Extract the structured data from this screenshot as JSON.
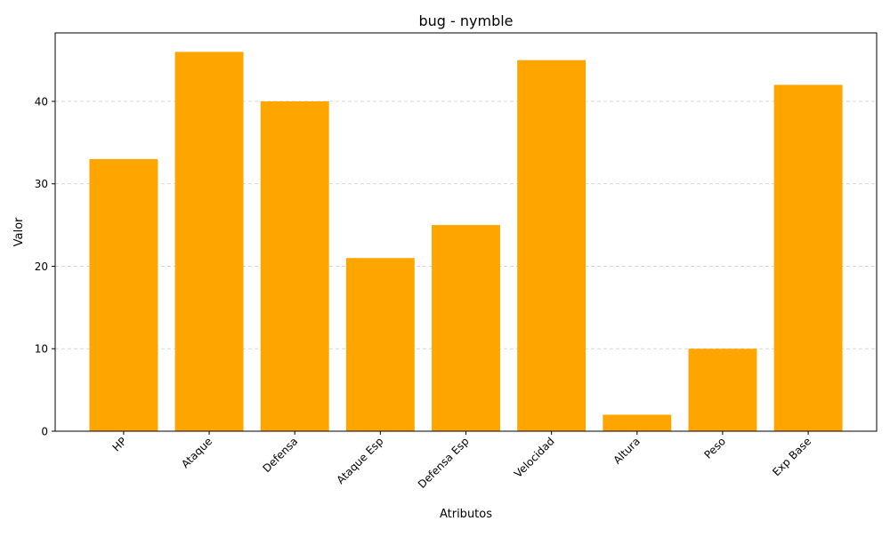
{
  "chart_data": {
    "type": "bar",
    "title": "bug - nymble",
    "xlabel": "Atributos",
    "ylabel": "Valor",
    "categories": [
      "HP",
      "Ataque",
      "Defensa",
      "Ataque Esp",
      "Defensa Esp",
      "Velocidad",
      "Altura",
      "Peso",
      "Exp Base"
    ],
    "values": [
      33,
      46,
      40,
      21,
      25,
      45,
      2,
      10,
      42
    ],
    "ylim": [
      0,
      48.3
    ],
    "yticks": [
      0,
      10,
      20,
      30,
      40
    ],
    "bar_color": "#FFA500",
    "grid": "y-dashed",
    "xtick_rotation": 45
  }
}
